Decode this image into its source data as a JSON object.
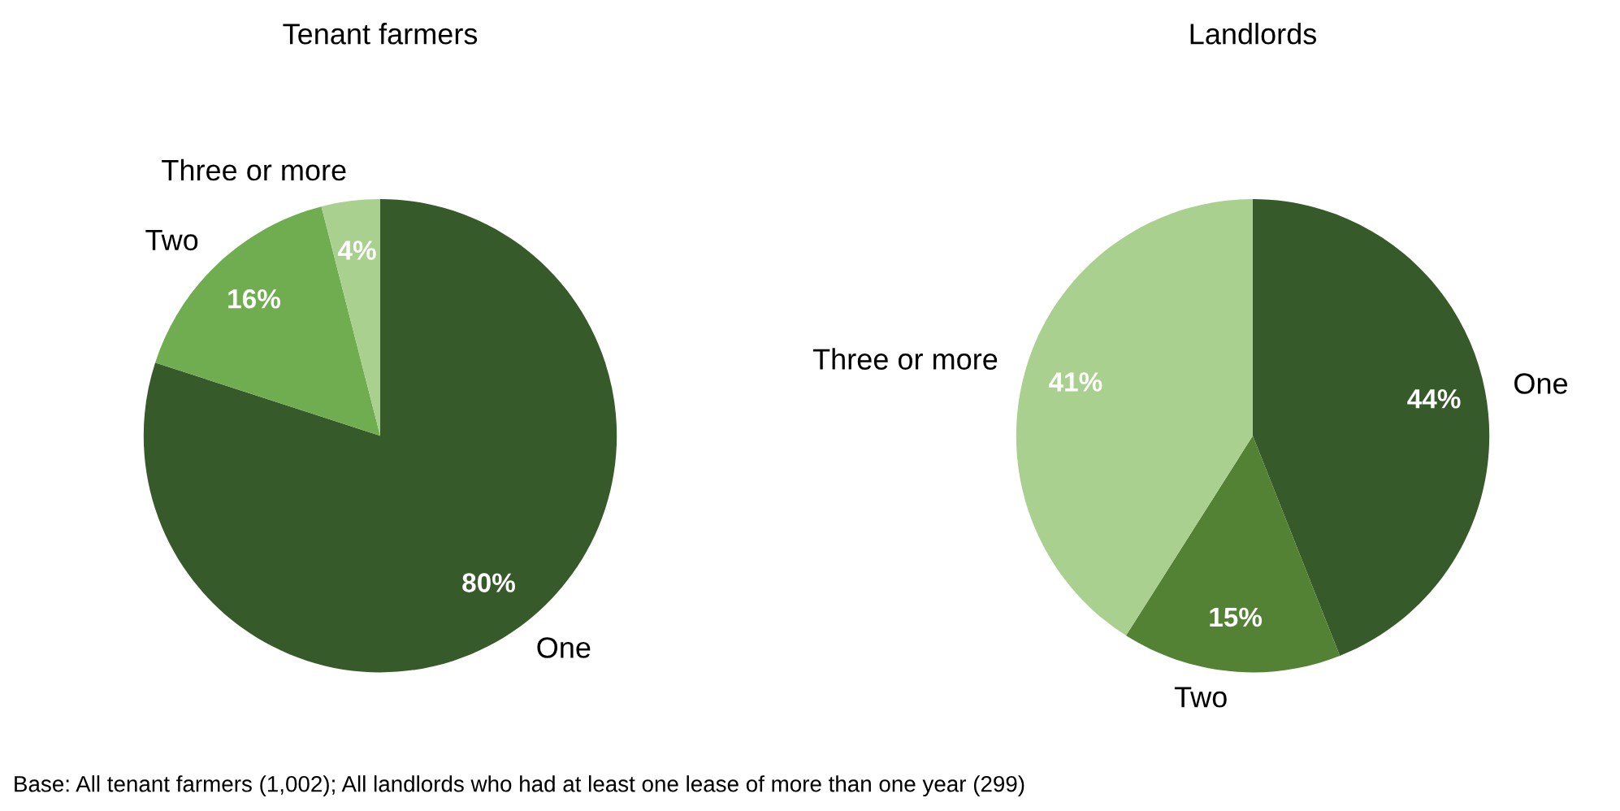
{
  "chart_data": [
    {
      "type": "pie",
      "title": "Tenant farmers",
      "categories": [
        "One",
        "Two",
        "Three or more"
      ],
      "values": [
        80,
        16,
        4
      ],
      "colors": [
        "#375a2a",
        "#70ad51",
        "#a9d08e"
      ],
      "value_labels": [
        "80%",
        "16%",
        "4%"
      ],
      "annotations": [
        "Base: All tenant farmers (1,002); All landlords who had at least one lease of more than one year (299)"
      ]
    },
    {
      "type": "pie",
      "title": "Landlords",
      "categories": [
        "One",
        "Two",
        "Three or more"
      ],
      "values": [
        44,
        15,
        41
      ],
      "colors": [
        "#375a2a",
        "#548235",
        "#a9d08e"
      ],
      "value_labels": [
        "44%",
        "15%",
        "41%"
      ]
    }
  ]
}
